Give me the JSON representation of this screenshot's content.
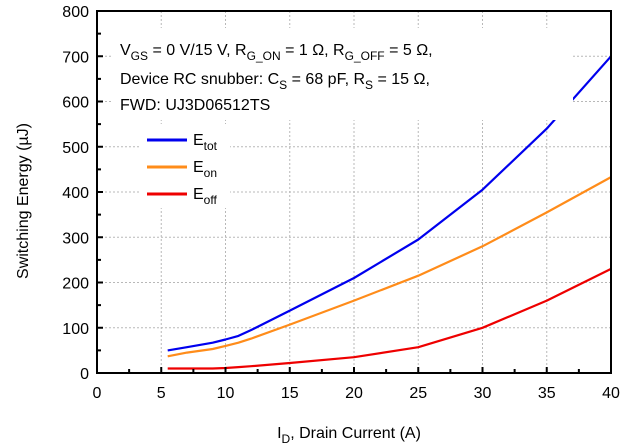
{
  "chart_data": {
    "type": "line",
    "xlabel_main": "I",
    "xlabel_sub": "D",
    "xlabel_rest": ", Drain Current (A)",
    "ylabel": "Switching Energy (µJ)",
    "xlim": [
      0,
      40
    ],
    "ylim": [
      0,
      800
    ],
    "xticks": [
      "0",
      "5",
      "10",
      "15",
      "20",
      "25",
      "30",
      "35",
      "40"
    ],
    "yticks": [
      "0",
      "100",
      "200",
      "300",
      "400",
      "500",
      "600",
      "700",
      "800"
    ],
    "grid": true,
    "legend_position": "left-middle",
    "annotation": {
      "line1": [
        {
          "t": "V",
          "s": "n"
        },
        {
          "t": "GS",
          "s": "sub"
        },
        {
          "t": " = 0 V/15 V, R",
          "s": "n"
        },
        {
          "t": "G_ON",
          "s": "sub"
        },
        {
          "t": " = 1 Ω, R",
          "s": "n"
        },
        {
          "t": "G_OFF",
          "s": "sub"
        },
        {
          "t": " = 5 Ω,",
          "s": "n"
        }
      ],
      "line2": [
        {
          "t": "Device RC snubber: C",
          "s": "n"
        },
        {
          "t": "S",
          "s": "sub"
        },
        {
          "t": " = 68 pF, R",
          "s": "n"
        },
        {
          "t": "S",
          "s": "sub"
        },
        {
          "t": " = 15 Ω,",
          "s": "n"
        }
      ],
      "line3": [
        {
          "t": "FWD: UJ3D06512TS",
          "s": "n"
        }
      ]
    },
    "series": [
      {
        "name_main": "E",
        "name_sub": "tot",
        "color": "#0000ee",
        "x": [
          5.5,
          7,
          9,
          10,
          11,
          12,
          15,
          20,
          25,
          30,
          35,
          40
        ],
        "y": [
          50,
          57,
          67,
          74,
          82,
          95,
          138,
          210,
          295,
          405,
          540,
          700
        ]
      },
      {
        "name_main": "E",
        "name_sub": "on",
        "color": "#ff8c1a",
        "x": [
          5.5,
          7,
          9,
          10,
          11,
          12,
          15,
          20,
          25,
          30,
          35,
          40
        ],
        "y": [
          37,
          45,
          53,
          60,
          67,
          76,
          107,
          160,
          215,
          280,
          355,
          433
        ]
      },
      {
        "name_main": "E",
        "name_sub": "off",
        "color": "#ee0000",
        "x": [
          5.5,
          7,
          9,
          10,
          11,
          12,
          15,
          20,
          25,
          30,
          35,
          40
        ],
        "y": [
          10,
          10,
          10,
          11,
          13,
          15,
          22,
          35,
          57,
          100,
          160,
          230
        ]
      }
    ]
  }
}
